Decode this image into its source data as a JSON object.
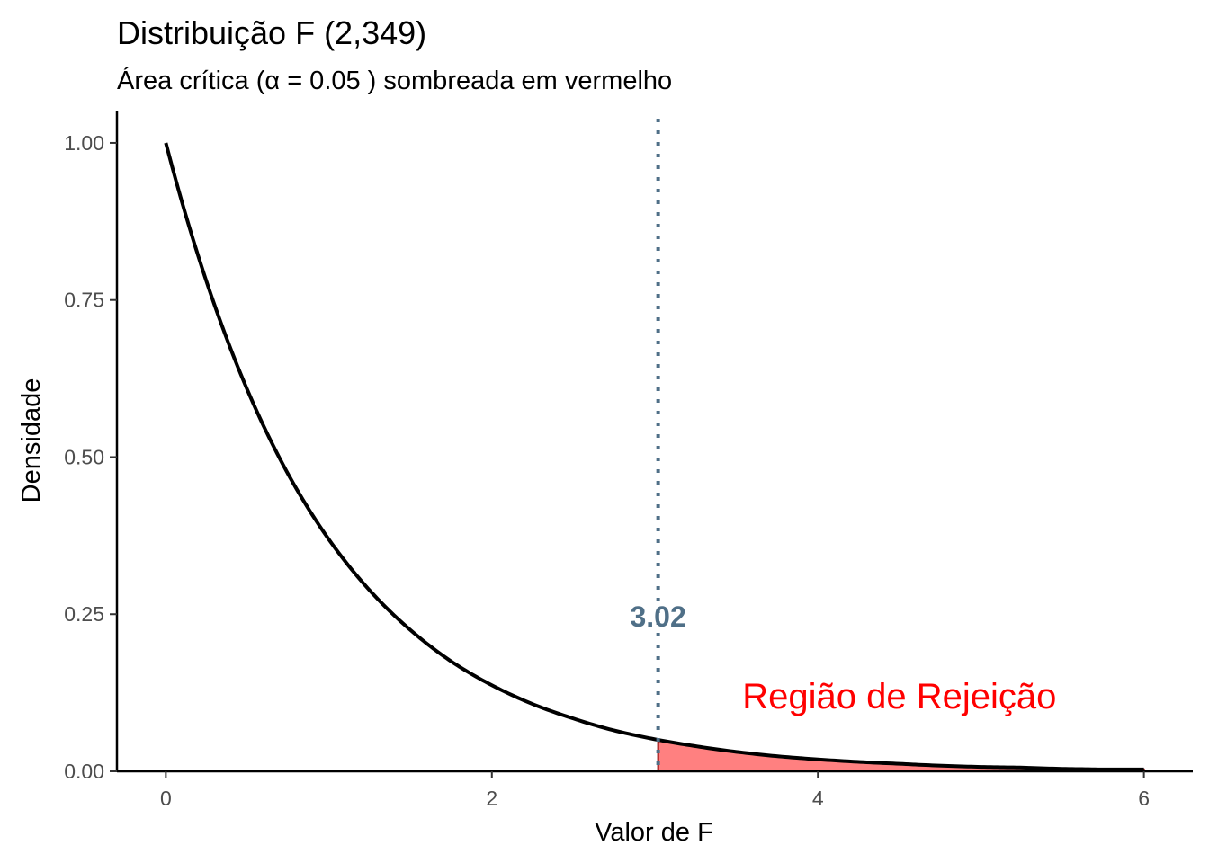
{
  "chart_data": {
    "type": "area",
    "title": "Distribuição F (2,349)",
    "subtitle": "Área crítica (α = 0.05 ) sombreada em vermelho",
    "xlabel": "Valor de F",
    "ylabel": "Densidade",
    "xlim": [
      -0.3,
      6.3
    ],
    "ylim": [
      0,
      1.05
    ],
    "x_ticks": [
      0,
      2,
      4,
      6
    ],
    "x_tick_labels": [
      "0",
      "2",
      "4",
      "6"
    ],
    "y_ticks": [
      0,
      0.25,
      0.5,
      0.75,
      1.0
    ],
    "y_tick_labels": [
      "0.00",
      "0.25",
      "0.50",
      "0.75",
      "1.00"
    ],
    "distribution": {
      "name": "F",
      "df1": 2,
      "df2": 349
    },
    "series": [
      {
        "x": [
          0,
          0.25,
          0.5,
          0.75,
          1.0,
          1.25,
          1.5,
          1.75,
          2.0,
          2.25,
          2.5,
          2.75,
          3.0,
          3.25,
          3.5,
          3.75,
          4.0,
          4.25,
          4.5,
          4.75,
          5.0,
          5.25,
          5.5,
          5.75,
          6.0
        ],
        "y": [
          1.0,
          0.779,
          0.607,
          0.473,
          0.369,
          0.288,
          0.225,
          0.175,
          0.137,
          0.107,
          0.084,
          0.065,
          0.051,
          0.04,
          0.031,
          0.024,
          0.019,
          0.015,
          0.012,
          0.009,
          0.007,
          0.006,
          0.004,
          0.003,
          0.003
        ]
      }
    ],
    "critical_value": 3.02,
    "critical_label": "3.02",
    "alpha": 0.05,
    "shaded_region": {
      "from": 3.02,
      "to": 6,
      "label": "Região de Rejeição"
    },
    "grid": false,
    "legend": "none",
    "colors": {
      "curve": "#000000",
      "shade_fill": "#ff8080",
      "shade_edge": "#8b0000",
      "critical_line": "#4f6f87",
      "region_label": "#ff0000",
      "axis": "#000000",
      "tick_label": "#4d4d4d"
    }
  }
}
